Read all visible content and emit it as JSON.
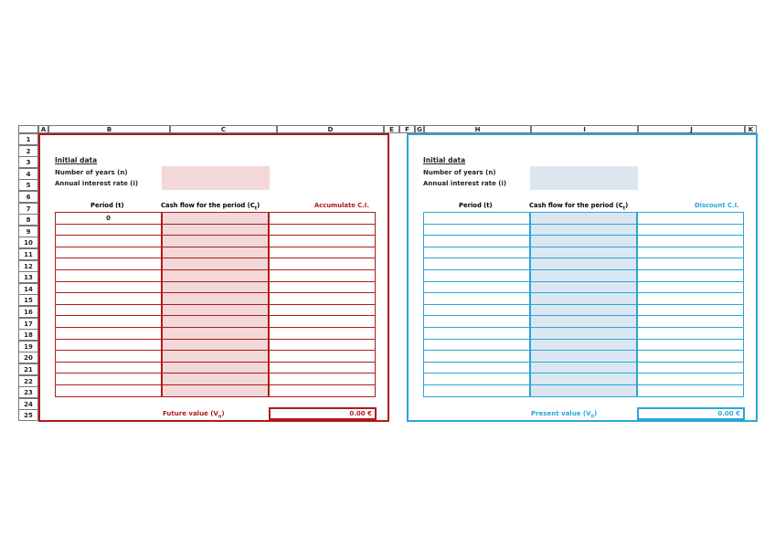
{
  "columns": [
    "A",
    "B",
    "C",
    "D",
    "E",
    "F",
    "G",
    "H",
    "I",
    "J",
    "K"
  ],
  "rows": [
    "1",
    "2",
    "3",
    "4",
    "5",
    "6",
    "7",
    "8",
    "9",
    "10",
    "11",
    "12",
    "13",
    "14",
    "15",
    "16",
    "17",
    "18",
    "19",
    "20",
    "21",
    "22",
    "23",
    "24",
    "25"
  ],
  "colors": {
    "future_border": "#b01a1a",
    "future_fill": "#f2d8d8",
    "present_border": "#2aa6d6",
    "present_fill": "#dce6f1"
  },
  "future_panel": {
    "section_title": "Initial data",
    "years_label": "Number of years (n)",
    "rate_label": "Annual interest rate (i)",
    "period_header": "Period (t)",
    "cashflow_header": "Cash flow for the period (C",
    "cashflow_sub": "t",
    "result_header": "Accumulate C.I.",
    "first_period": "0",
    "total_label": "Future value (V",
    "total_sub": "n",
    "total_value": "0.00 €"
  },
  "present_panel": {
    "section_title": "Initial data",
    "years_label": "Number of years (n)",
    "rate_label": "Annual interest rate (i)",
    "period_header": "Period (t)",
    "cashflow_header": "Cash flow for the period (C",
    "cashflow_sub": "t",
    "result_header": "Discount C.I.",
    "total_label": "Present value (V",
    "total_sub": "0",
    "total_value": "0.00 €"
  }
}
